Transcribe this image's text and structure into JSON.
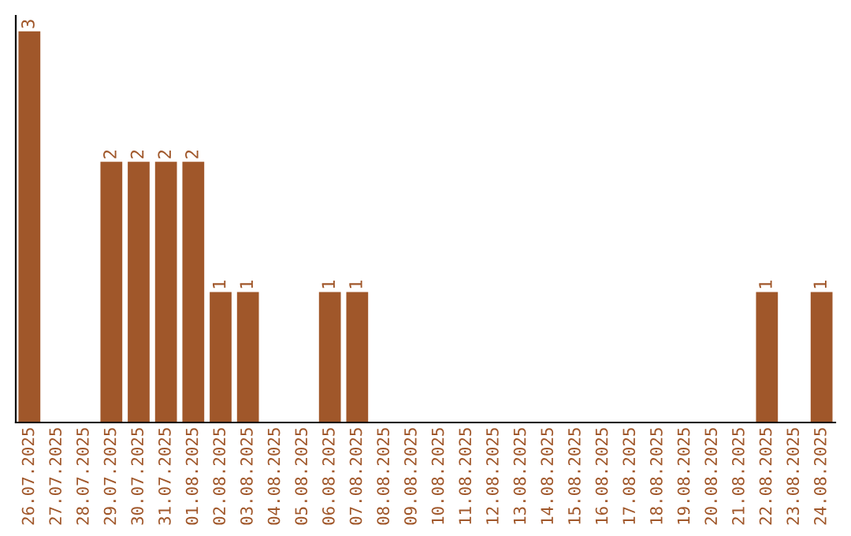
{
  "chart_data": {
    "type": "bar",
    "categories": [
      "26.07.2025",
      "27.07.2025",
      "28.07.2025",
      "29.07.2025",
      "30.07.2025",
      "31.07.2025",
      "01.08.2025",
      "02.08.2025",
      "03.08.2025",
      "04.08.2025",
      "05.08.2025",
      "06.08.2025",
      "07.08.2025",
      "08.08.2025",
      "09.08.2025",
      "10.08.2025",
      "11.08.2025",
      "12.08.2025",
      "13.08.2025",
      "14.08.2025",
      "15.08.2025",
      "16.08.2025",
      "17.08.2025",
      "18.08.2025",
      "19.08.2025",
      "20.08.2025",
      "21.08.2025",
      "22.08.2025",
      "23.08.2025",
      "24.08.2025"
    ],
    "values": [
      3,
      0,
      0,
      2,
      2,
      2,
      2,
      1,
      1,
      0,
      0,
      1,
      1,
      0,
      0,
      0,
      0,
      0,
      0,
      0,
      0,
      0,
      0,
      0,
      0,
      0,
      0,
      1,
      0,
      1
    ],
    "value_labels": [
      "3",
      null,
      null,
      "2",
      "2",
      "2",
      "2",
      "1",
      "1",
      null,
      null,
      "1",
      "1",
      null,
      null,
      null,
      null,
      null,
      null,
      null,
      null,
      null,
      null,
      null,
      null,
      null,
      null,
      "1",
      null,
      "1"
    ],
    "color": "#a0572a",
    "tick_labels": "x",
    "grid": false,
    "legend": false
  }
}
